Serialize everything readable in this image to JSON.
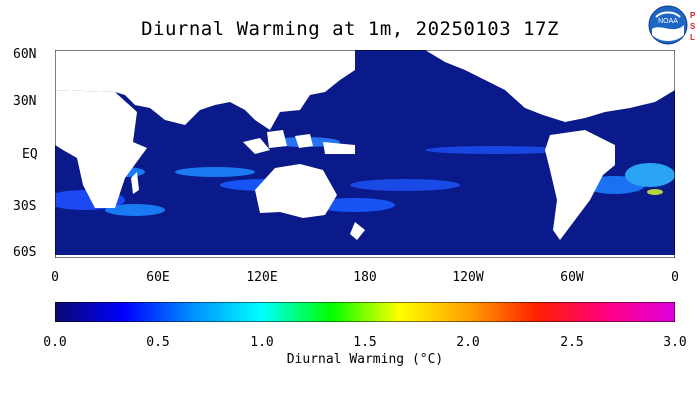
{
  "title": "Diurnal Warming at 1m, 20250103 17Z",
  "logo": {
    "name": "noaa-logo",
    "text": "NOAA",
    "side_text": "P S L"
  },
  "map": {
    "lat_labels": [
      "60N",
      "30N",
      "EQ",
      "30S",
      "60S"
    ],
    "lon_labels": [
      "0",
      "60E",
      "120E",
      "180",
      "120W",
      "60W",
      "0"
    ],
    "ocean_color": "#0a1a8a",
    "land_color": "#ffffff"
  },
  "colorbar": {
    "ticks": [
      "0.0",
      "0.5",
      "1.0",
      "1.5",
      "2.0",
      "2.5",
      "3.0"
    ],
    "label": "Diurnal Warming (°C)",
    "range": [
      0.0,
      3.0
    ],
    "colors": [
      "#0a0a6e",
      "#0000ff",
      "#0090ff",
      "#00ffff",
      "#00ff00",
      "#ffff00",
      "#ffa000",
      "#ff2000",
      "#ff0080",
      "#e000e0"
    ]
  }
}
